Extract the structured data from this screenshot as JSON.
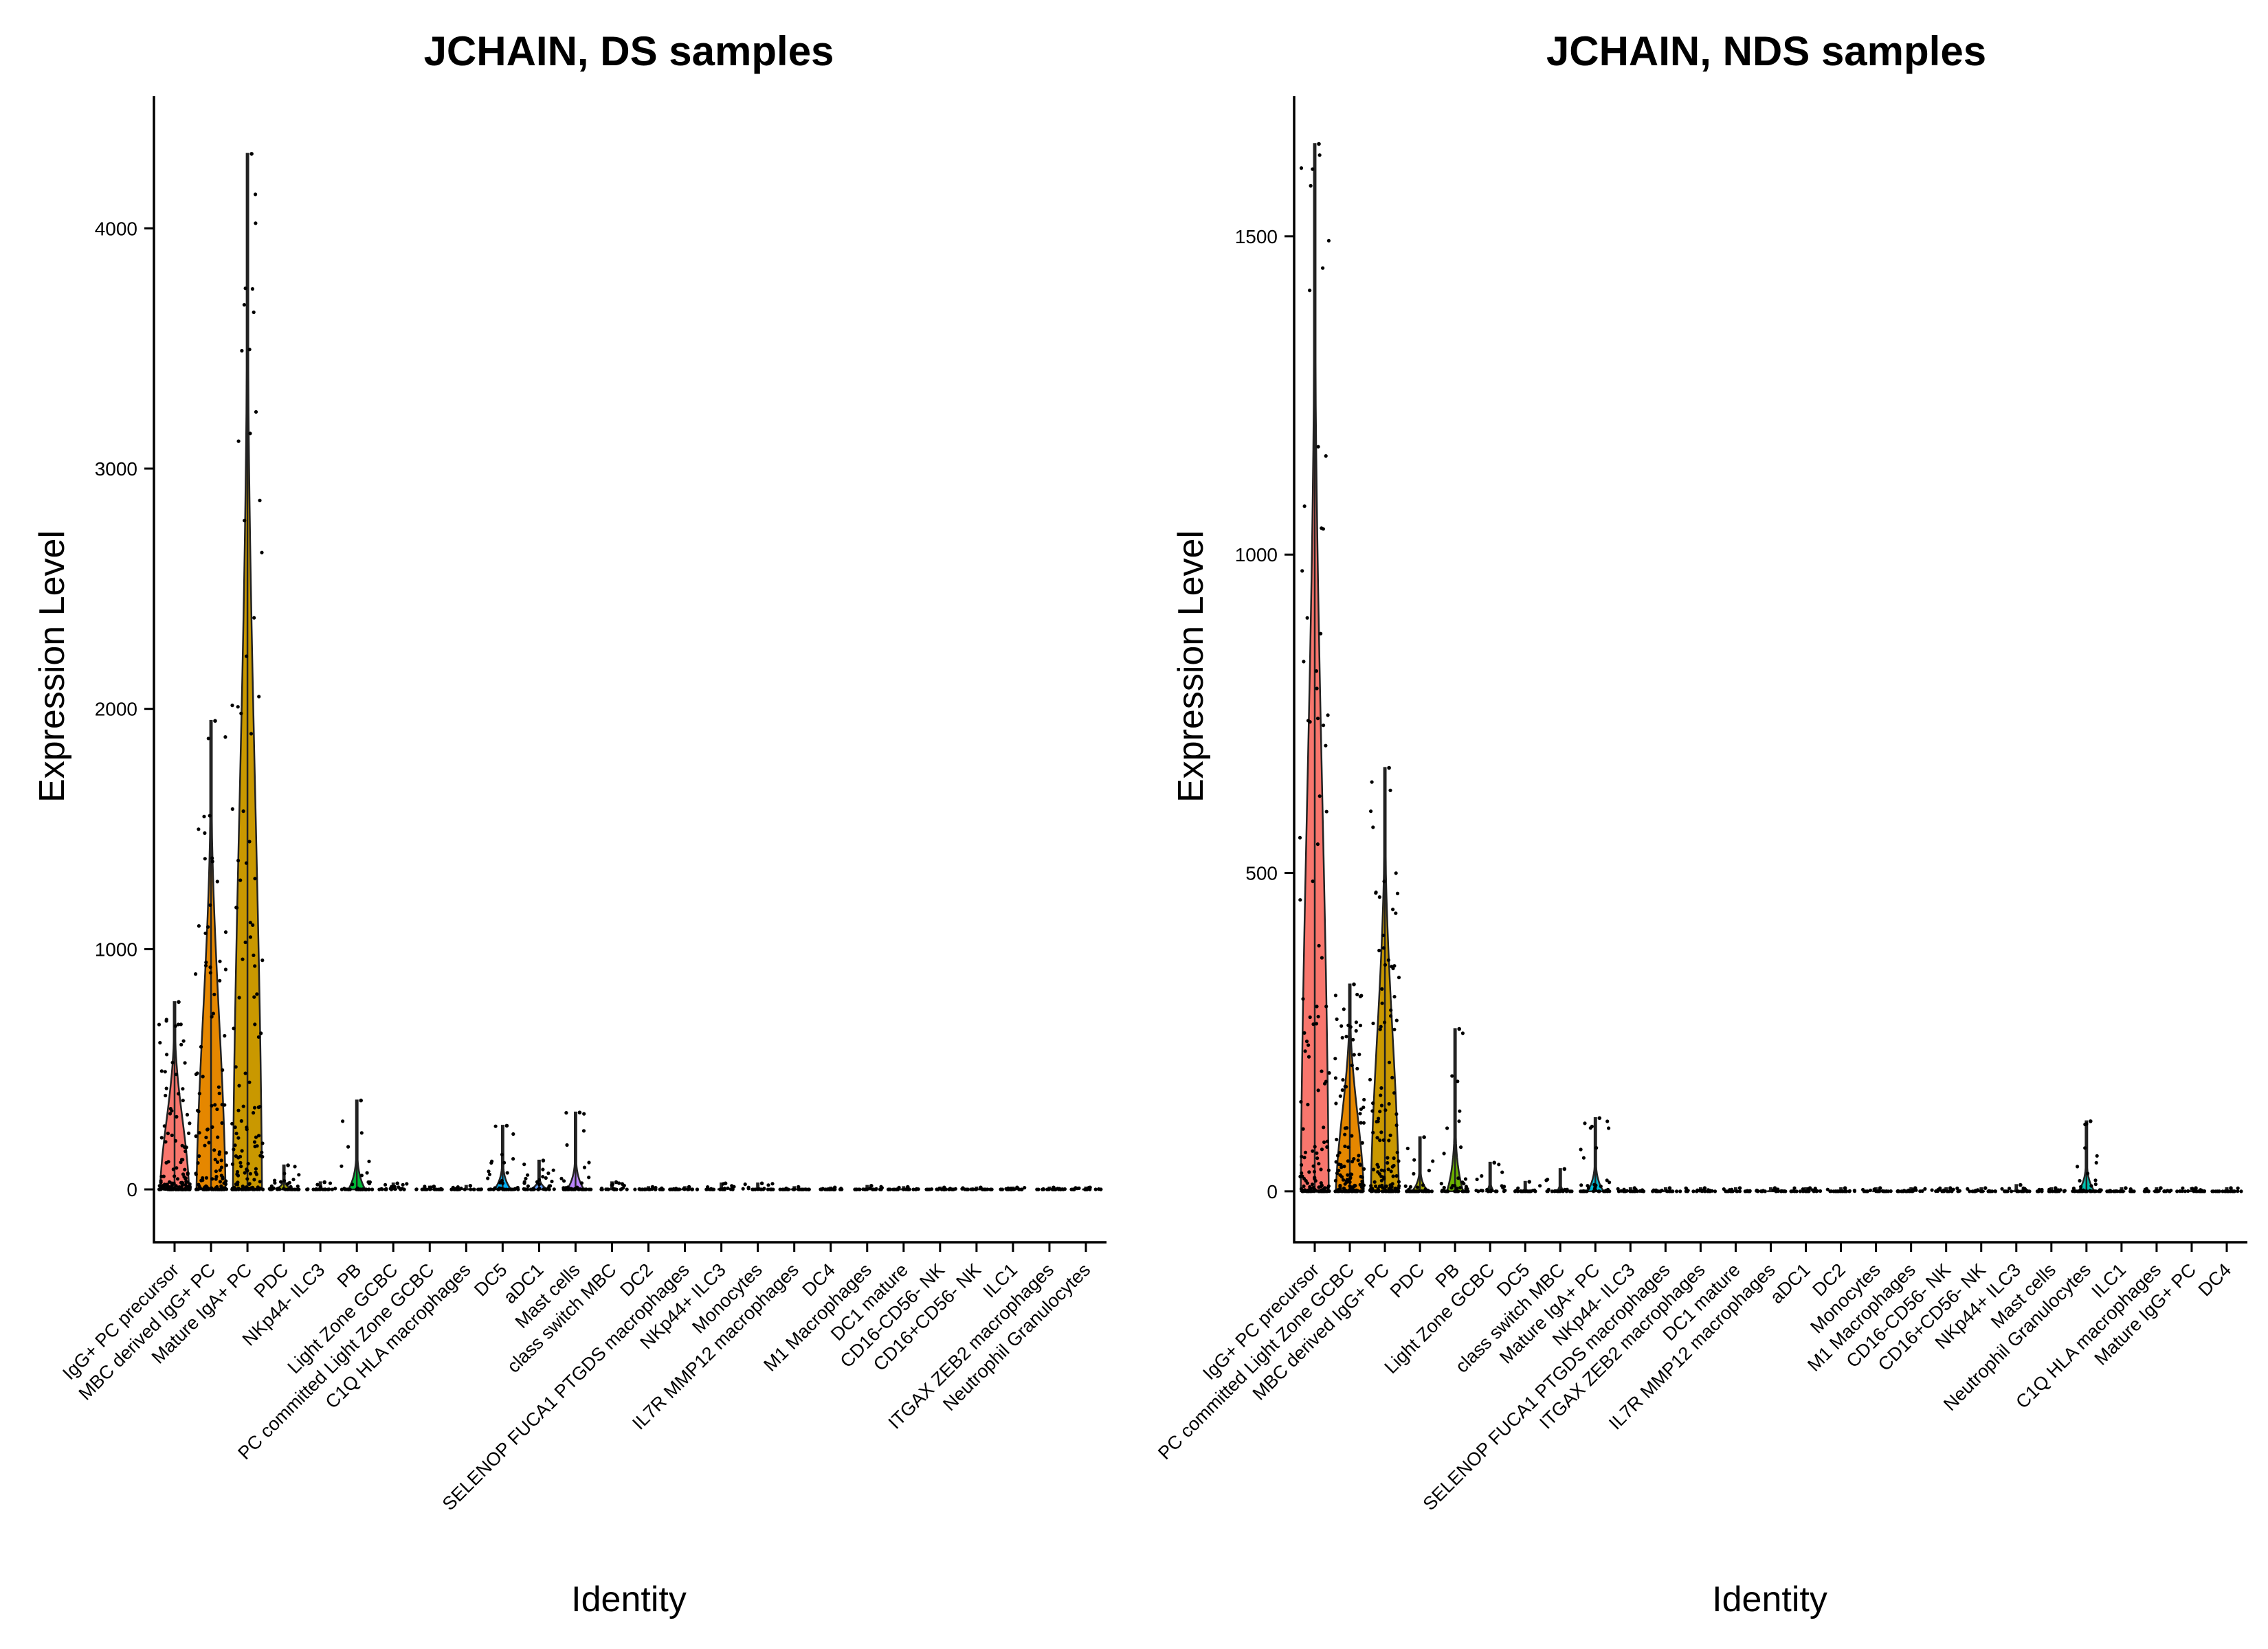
{
  "chart_data": [
    {
      "type": "violin",
      "title": "JCHAIN, DS samples",
      "xlabel": "Identity",
      "ylabel": "Expression Level",
      "ylim": [
        -220,
        4550
      ],
      "yticks": [
        0,
        1000,
        2000,
        3000,
        4000
      ],
      "categories": [
        "IgG+ PC precursor",
        "MBC derived IgG+ PC",
        "Mature IgA+ PC",
        "PDC",
        "NKp44- ILC3",
        "PB",
        "Light Zone GCBC",
        "PC committed Light Zone GCBC",
        "C1Q HLA macrophages",
        "DC5",
        "aDC1",
        "Mast cells",
        "class switch MBC",
        "DC2",
        "SELENOP FUCA1 PTGDS macrophages",
        "NKp44+ ILC3",
        "Monocytes",
        "IL7R MMP12 macrophages",
        "DC4",
        "M1 Macrophages",
        "DC1 mature",
        "CD16-CD56- NK",
        "CD16+CD56- NK",
        "ILC1",
        "ITGAX ZEB2 macrophages",
        "Neutrophil Granulocytes"
      ],
      "max_values": [
        780,
        1950,
        4310,
        100,
        30,
        370,
        25,
        12,
        15,
        265,
        120,
        320,
        30,
        10,
        10,
        25,
        25,
        10,
        8,
        15,
        10,
        8,
        8,
        8,
        8,
        8
      ],
      "violin_fill": [
        "#F8766D",
        "#E58700",
        "#C99800",
        "#A3A500",
        "#6BB100",
        "#00BA38",
        "#00BF7D",
        "#00C0AF",
        "#00BCD8",
        "#00B0F6",
        "#619CFF",
        "#B983FF",
        "#E76BF3",
        "#FD61D1",
        "#FF67A4",
        "#F8766D",
        "#E58700",
        "#C99800",
        "#A3A500",
        "#6BB100",
        "#00BA38",
        "#00BF7D",
        "#00C0AF",
        "#00BCD8",
        "#00B0F6",
        "#619CFF"
      ]
    },
    {
      "type": "violin",
      "title": "JCHAIN, NDS samples",
      "xlabel": "Identity",
      "ylabel": "Expression Level",
      "ylim": [
        -80,
        1720
      ],
      "yticks": [
        0,
        500,
        1000,
        1500
      ],
      "categories": [
        "IgG+ PC precursor",
        "PC committed Light Zone GCBC",
        "MBC derived IgG+ PC",
        "PDC",
        "PB",
        "Light Zone GCBC",
        "DC5",
        "class switch MBC",
        "Mature IgA+ PC",
        "NKp44- ILC3",
        "SELENOP FUCA1 PTGDS macrophages",
        "ITGAX ZEB2 macrophages",
        "DC1 mature",
        "IL7R MMP12 macrophages",
        "aDC1",
        "DC2",
        "Monocytes",
        "M1 Macrophages",
        "CD16-CD56- NK",
        "CD16+CD56- NK",
        "NKp44+ ILC3",
        "Mast cells",
        "Neutrophil Granulocytes",
        "ILC1",
        "C1Q HLA macrophages",
        "Mature IgG+ PC",
        "DC4"
      ],
      "max_values": [
        1645,
        325,
        665,
        85,
        255,
        45,
        15,
        35,
        115,
        5,
        5,
        5,
        5,
        5,
        5,
        5,
        5,
        5,
        5,
        5,
        10,
        5,
        110,
        5,
        5,
        5,
        5
      ],
      "violin_fill": [
        "#F8766D",
        "#E58700",
        "#C99800",
        "#A3A500",
        "#6BB100",
        "#00BA38",
        "#00BF7D",
        "#00C0AF",
        "#00BCD8",
        "#00B0F6",
        "#619CFF",
        "#B983FF",
        "#E76BF3",
        "#FD61D1",
        "#FF67A4",
        "#F8766D",
        "#E58700",
        "#C99800",
        "#A3A500",
        "#6BB100",
        "#00BA38",
        "#00BF7D",
        "#00C0AF",
        "#00BCD8",
        "#00B0F6",
        "#619CFF",
        "#B983FF"
      ]
    }
  ]
}
